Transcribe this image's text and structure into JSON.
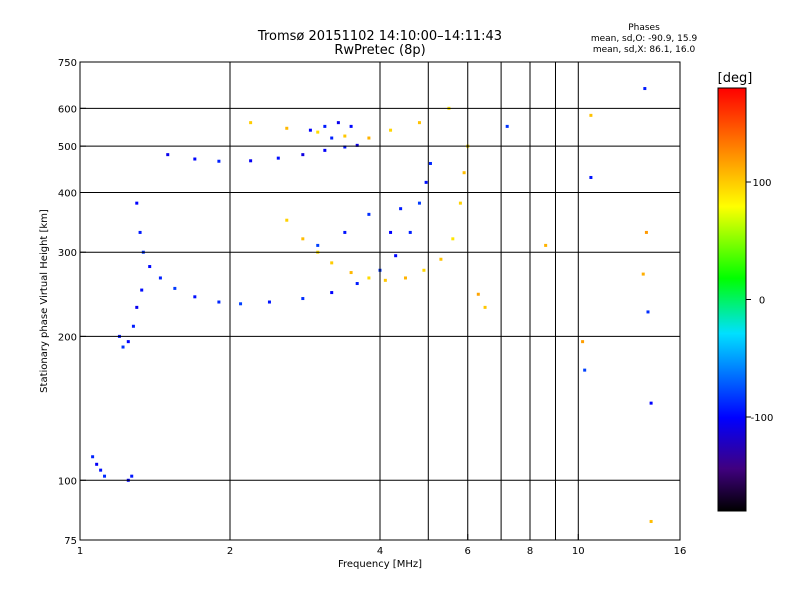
{
  "title": {
    "line1": "Tromsø 20151102 14:10:00–14:11:43",
    "line2": "RwPretec (8p)"
  },
  "phases": {
    "header": "Phases",
    "line1": "mean, sd,O: -90.9, 15.9",
    "line2": "mean, sd,X:  86.1, 16.0"
  },
  "chart_data": {
    "type": "scatter",
    "xlabel": "Frequency [MHz]",
    "ylabel": "Stationary phase Virtual Height [km]",
    "x_scale": "log",
    "y_scale": "log",
    "xlim": [
      1,
      16
    ],
    "ylim": [
      75,
      750
    ],
    "x_ticks": [
      {
        "value": 1,
        "label": "1"
      },
      {
        "value": 2,
        "label": "2"
      },
      {
        "value": 4,
        "label": "4"
      },
      {
        "value": 6,
        "label": "6"
      },
      {
        "value": 8,
        "label": "8"
      },
      {
        "value": 10,
        "label": "10"
      },
      {
        "value": 16,
        "label": "16"
      }
    ],
    "y_ticks": [
      {
        "value": 75,
        "label": "75"
      },
      {
        "value": 100,
        "label": "100"
      },
      {
        "value": 200,
        "label": "200"
      },
      {
        "value": 300,
        "label": "300"
      },
      {
        "value": 400,
        "label": "400"
      },
      {
        "value": 500,
        "label": "500"
      },
      {
        "value": 600,
        "label": "600"
      },
      {
        "value": 750,
        "label": "750"
      }
    ],
    "x_gridlines": [
      2,
      4,
      5,
      6,
      7,
      8,
      9,
      10
    ],
    "y_gridlines": [
      100,
      200,
      300,
      400,
      500,
      600
    ],
    "grid": true,
    "colorbar": {
      "unit": "[deg]",
      "range": [
        -180,
        180
      ],
      "ticks": [
        {
          "value": 100,
          "label": "100"
        },
        {
          "value": 0,
          "label": "0"
        },
        {
          "value": -100,
          "label": "-100"
        }
      ]
    },
    "series": [
      {
        "mode": "O",
        "phase": -90,
        "points": [
          [
            1.3,
            380
          ],
          [
            1.32,
            330
          ],
          [
            1.34,
            300
          ],
          [
            1.38,
            280
          ],
          [
            1.45,
            265
          ],
          [
            1.55,
            252
          ],
          [
            1.7,
            242
          ],
          [
            1.9,
            236
          ],
          [
            2.1,
            234
          ],
          [
            2.4,
            236
          ],
          [
            2.8,
            240
          ],
          [
            3.2,
            247
          ],
          [
            3.6,
            258
          ],
          [
            4.0,
            275
          ],
          [
            4.3,
            295
          ],
          [
            4.6,
            330
          ],
          [
            4.8,
            380
          ],
          [
            4.95,
            420
          ],
          [
            5.05,
            460
          ],
          [
            3.0,
            310
          ],
          [
            3.4,
            330
          ],
          [
            3.8,
            360
          ],
          [
            4.2,
            330
          ],
          [
            4.4,
            370
          ]
        ]
      },
      {
        "mode": "O",
        "phase": -100,
        "points": [
          [
            1.5,
            480
          ],
          [
            1.7,
            470
          ],
          [
            1.9,
            465
          ],
          [
            2.2,
            466
          ],
          [
            2.5,
            472
          ],
          [
            2.8,
            480
          ],
          [
            3.1,
            490
          ],
          [
            3.4,
            498
          ],
          [
            3.6,
            502
          ],
          [
            2.9,
            540
          ],
          [
            3.1,
            550
          ],
          [
            3.3,
            560
          ],
          [
            3.5,
            550
          ],
          [
            3.2,
            520
          ]
        ]
      },
      {
        "mode": "X",
        "phase": 100,
        "points": [
          [
            2.6,
            350
          ],
          [
            2.8,
            320
          ],
          [
            3.0,
            300
          ],
          [
            3.2,
            285
          ],
          [
            3.5,
            272
          ],
          [
            3.8,
            265
          ],
          [
            4.1,
            262
          ],
          [
            4.5,
            265
          ],
          [
            4.9,
            275
          ],
          [
            5.3,
            290
          ],
          [
            5.6,
            320
          ],
          [
            5.8,
            380
          ],
          [
            5.9,
            440
          ],
          [
            6.0,
            500
          ],
          [
            2.2,
            560
          ],
          [
            2.6,
            545
          ],
          [
            3.0,
            535
          ],
          [
            3.4,
            525
          ],
          [
            3.8,
            520
          ],
          [
            4.2,
            540
          ],
          [
            4.8,
            560
          ],
          [
            5.5,
            600
          ]
        ]
      },
      {
        "mode": "O",
        "phase": -95,
        "points": [
          [
            1.2,
            200
          ],
          [
            1.22,
            190
          ],
          [
            1.25,
            195
          ],
          [
            1.28,
            210
          ],
          [
            1.3,
            230
          ],
          [
            1.33,
            250
          ],
          [
            1.06,
            112
          ],
          [
            1.08,
            108
          ],
          [
            1.1,
            105
          ],
          [
            1.12,
            102
          ],
          [
            1.25,
            100
          ],
          [
            1.27,
            102
          ]
        ]
      },
      {
        "mode": "scatter",
        "phase": 110,
        "points": [
          [
            6.3,
            245
          ],
          [
            6.5,
            230
          ],
          [
            8.6,
            310
          ],
          [
            10.2,
            195
          ],
          [
            10.6,
            580
          ],
          [
            13.5,
            270
          ],
          [
            13.7,
            330
          ],
          [
            14.0,
            82
          ]
        ]
      },
      {
        "mode": "scatter",
        "phase": -90,
        "points": [
          [
            10.3,
            170
          ],
          [
            10.6,
            430
          ],
          [
            13.8,
            225
          ],
          [
            14.0,
            145
          ],
          [
            13.6,
            660
          ],
          [
            7.2,
            550
          ]
        ]
      }
    ]
  }
}
